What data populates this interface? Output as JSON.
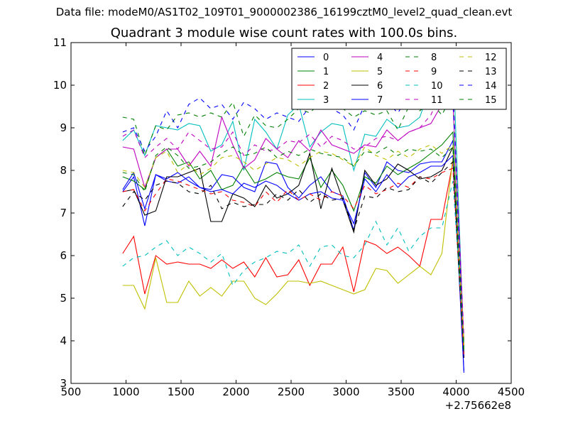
{
  "chart_data": {
    "type": "line",
    "suptitle": "Data file: modeM0/AS1T02_109T01_9000002386_16199cztM0_level2_quad_clean.evt",
    "title": "Quadrant 3 module wise count rates with 100.0s bins.",
    "xlabel": "",
    "ylabel": "",
    "x_offset_label": "+2.75662e8",
    "xlim": [
      500,
      4500
    ],
    "ylim": [
      3,
      11
    ],
    "x_ticks": [
      500,
      1000,
      1500,
      2000,
      2500,
      3000,
      3500,
      4000,
      4500
    ],
    "y_ticks": [
      3,
      4,
      5,
      6,
      7,
      8,
      9,
      10,
      11
    ],
    "grid": false,
    "legend_position": "top-right",
    "x": [
      970,
      1070,
      1170,
      1270,
      1370,
      1470,
      1570,
      1670,
      1770,
      1870,
      1970,
      2070,
      2170,
      2270,
      2370,
      2470,
      2570,
      2670,
      2770,
      2870,
      2970,
      3070,
      3170,
      3270,
      3370,
      3470,
      3570,
      3670,
      3770,
      3870,
      3970,
      4070
    ],
    "series": [
      {
        "name": "0",
        "color": "#0000ff",
        "dash": "solid",
        "values": [
          7.5,
          7.85,
          6.7,
          7.9,
          7.8,
          7.95,
          7.75,
          7.6,
          7.55,
          7.9,
          7.85,
          7.6,
          7.5,
          8.2,
          8.15,
          7.6,
          7.35,
          7.65,
          7.85,
          7.5,
          7.4,
          6.6,
          7.95,
          7.6,
          8.2,
          8.0,
          7.95,
          8.15,
          8.2,
          8.2,
          8.7,
          3.25
        ]
      },
      {
        "name": "1",
        "color": "#008000",
        "dash": "solid",
        "values": [
          7.85,
          7.75,
          7.55,
          8.3,
          8.5,
          8.1,
          8.2,
          7.8,
          8.0,
          7.55,
          7.65,
          8.1,
          7.7,
          7.8,
          7.95,
          7.85,
          7.8,
          8.3,
          7.6,
          8.0,
          7.65,
          7.05,
          7.85,
          7.7,
          8.1,
          7.9,
          8.05,
          8.2,
          8.4,
          8.6,
          8.9,
          3.6
        ]
      },
      {
        "name": "2",
        "color": "#ff0000",
        "dash": "solid",
        "values": [
          6.05,
          6.45,
          5.1,
          6.0,
          5.8,
          5.85,
          5.8,
          5.8,
          5.7,
          5.9,
          5.7,
          5.85,
          5.5,
          5.95,
          5.5,
          5.55,
          5.9,
          5.3,
          5.8,
          5.8,
          6.2,
          5.15,
          6.35,
          6.25,
          6.05,
          6.2,
          6.0,
          5.75,
          6.85,
          6.85,
          8.2,
          3.6
        ]
      },
      {
        "name": "3",
        "color": "#00bfbf",
        "dash": "solid",
        "values": [
          8.7,
          8.95,
          8.35,
          9.05,
          9.0,
          8.95,
          9.1,
          9.05,
          8.45,
          8.6,
          9.15,
          8.0,
          9.2,
          8.9,
          8.5,
          9.3,
          9.55,
          8.55,
          8.9,
          9.1,
          9.05,
          8.0,
          8.85,
          8.8,
          9.2,
          9.0,
          9.05,
          9.25,
          10.0,
          10.1,
          10.7,
          3.85
        ]
      },
      {
        "name": "4",
        "color": "#bf00bf",
        "dash": "solid",
        "values": [
          8.55,
          8.5,
          7.6,
          8.3,
          8.5,
          8.5,
          8.1,
          8.45,
          8.1,
          9.25,
          8.6,
          8.05,
          8.25,
          8.75,
          8.5,
          8.3,
          8.7,
          8.45,
          8.95,
          8.6,
          8.5,
          8.4,
          8.6,
          8.55,
          8.95,
          8.7,
          8.9,
          9.0,
          9.1,
          9.55,
          9.6,
          4.0
        ]
      },
      {
        "name": "5",
        "color": "#bfbf00",
        "dash": "solid",
        "values": [
          5.3,
          5.3,
          4.75,
          5.95,
          4.9,
          4.9,
          5.4,
          5.05,
          5.25,
          5.05,
          5.4,
          5.4,
          5.0,
          4.85,
          5.1,
          5.4,
          5.4,
          5.35,
          5.4,
          5.3,
          5.2,
          5.1,
          5.2,
          5.7,
          5.65,
          5.35,
          5.55,
          5.75,
          5.55,
          6.05,
          8.3,
          4.0
        ]
      },
      {
        "name": "6",
        "color": "#000000",
        "dash": "solid",
        "values": [
          7.5,
          7.55,
          6.95,
          7.05,
          7.85,
          7.85,
          7.95,
          8.05,
          6.8,
          6.8,
          7.45,
          7.35,
          7.15,
          7.65,
          7.35,
          7.45,
          7.65,
          8.4,
          7.1,
          8.05,
          7.3,
          6.55,
          8.0,
          7.65,
          7.8,
          8.15,
          8.0,
          7.8,
          7.85,
          8.0,
          8.55,
          3.7
        ]
      },
      {
        "name": "7",
        "color": "#0000ff",
        "dash": "solid",
        "values": [
          7.55,
          7.95,
          7.1,
          7.9,
          7.75,
          7.7,
          7.85,
          7.6,
          7.5,
          7.55,
          7.45,
          7.7,
          7.6,
          7.75,
          7.65,
          7.45,
          7.3,
          7.45,
          7.5,
          7.35,
          7.3,
          6.75,
          7.8,
          7.5,
          7.9,
          7.6,
          7.85,
          7.95,
          8.1,
          8.1,
          8.35,
          3.3
        ]
      },
      {
        "name": "8",
        "color": "#008000",
        "dash": "dashed",
        "values": [
          9.25,
          9.2,
          8.35,
          9.05,
          8.95,
          9.3,
          9.35,
          9.25,
          9.35,
          9.25,
          9.6,
          8.8,
          9.3,
          9.05,
          9.0,
          9.2,
          9.45,
          9.35,
          9.6,
          9.5,
          9.45,
          9.25,
          9.4,
          9.3,
          9.4,
          8.95,
          9.5,
          9.4,
          9.6,
          9.3,
          9.8,
          3.8
        ]
      },
      {
        "name": "9",
        "color": "#ff0000",
        "dash": "dashed",
        "values": [
          7.5,
          7.55,
          7.05,
          7.45,
          7.8,
          7.75,
          7.65,
          7.55,
          7.45,
          7.5,
          7.3,
          7.25,
          7.15,
          7.5,
          7.25,
          7.55,
          7.3,
          7.45,
          7.3,
          7.5,
          7.4,
          7.1,
          7.65,
          7.45,
          7.55,
          7.7,
          7.6,
          7.85,
          7.8,
          7.95,
          8.05,
          3.65
        ]
      },
      {
        "name": "10",
        "color": "#00bfbf",
        "dash": "dashed",
        "values": [
          5.75,
          5.95,
          6.0,
          6.2,
          6.35,
          6.0,
          6.2,
          6.05,
          5.85,
          6.05,
          5.3,
          5.65,
          5.85,
          5.95,
          6.1,
          6.05,
          6.25,
          5.75,
          6.2,
          6.25,
          6.0,
          5.95,
          6.25,
          6.8,
          6.25,
          6.65,
          6.1,
          6.45,
          6.65,
          6.65,
          7.75,
          3.95
        ]
      },
      {
        "name": "11",
        "color": "#bf00bf",
        "dash": "dashed",
        "values": [
          8.8,
          8.95,
          8.3,
          8.55,
          8.75,
          8.5,
          8.9,
          8.7,
          8.5,
          8.55,
          8.9,
          8.35,
          8.6,
          8.45,
          8.5,
          8.7,
          8.65,
          8.85,
          8.55,
          8.8,
          8.7,
          8.5,
          8.55,
          8.75,
          8.8,
          8.7,
          8.9,
          9.0,
          9.3,
          9.9,
          9.95,
          4.1
        ]
      },
      {
        "name": "12",
        "color": "#bfbf00",
        "dash": "dashed",
        "values": [
          8.0,
          7.95,
          7.6,
          8.3,
          8.45,
          7.95,
          8.15,
          7.9,
          8.05,
          8.3,
          8.35,
          8.2,
          8.0,
          8.15,
          8.3,
          8.25,
          8.1,
          8.3,
          8.45,
          8.4,
          8.25,
          8.1,
          8.55,
          8.35,
          8.25,
          8.45,
          8.3,
          8.5,
          8.6,
          8.4,
          8.6,
          3.9
        ]
      },
      {
        "name": "13",
        "color": "#000000",
        "dash": "dashed",
        "values": [
          7.15,
          7.5,
          7.3,
          7.65,
          7.75,
          7.7,
          7.5,
          7.45,
          7.65,
          7.1,
          7.25,
          7.15,
          7.2,
          7.2,
          7.45,
          7.3,
          7.55,
          7.25,
          7.45,
          7.3,
          7.35,
          6.6,
          7.4,
          7.35,
          7.6,
          7.5,
          7.55,
          7.85,
          7.7,
          7.95,
          8.2,
          3.6
        ]
      },
      {
        "name": "14",
        "color": "#0000ff",
        "dash": "dashed",
        "values": [
          8.9,
          9.0,
          8.45,
          8.8,
          9.4,
          9.0,
          9.55,
          9.7,
          9.45,
          9.55,
          9.2,
          9.6,
          9.45,
          9.2,
          9.35,
          9.25,
          9.15,
          9.5,
          9.65,
          9.45,
          9.3,
          8.95,
          9.55,
          9.5,
          9.6,
          9.35,
          9.75,
          10.1,
          10.0,
          9.75,
          9.7,
          3.65
        ]
      },
      {
        "name": "15",
        "color": "#008000",
        "dash": "dashed",
        "values": [
          7.95,
          7.9,
          7.5,
          8.35,
          8.55,
          8.35,
          8.05,
          8.1,
          8.2,
          8.4,
          8.55,
          8.35,
          8.4,
          8.55,
          8.3,
          8.45,
          8.35,
          8.5,
          8.4,
          8.35,
          8.3,
          8.1,
          8.45,
          8.4,
          8.55,
          8.35,
          8.5,
          8.45,
          8.5,
          8.3,
          8.55,
          3.7
        ]
      }
    ]
  }
}
